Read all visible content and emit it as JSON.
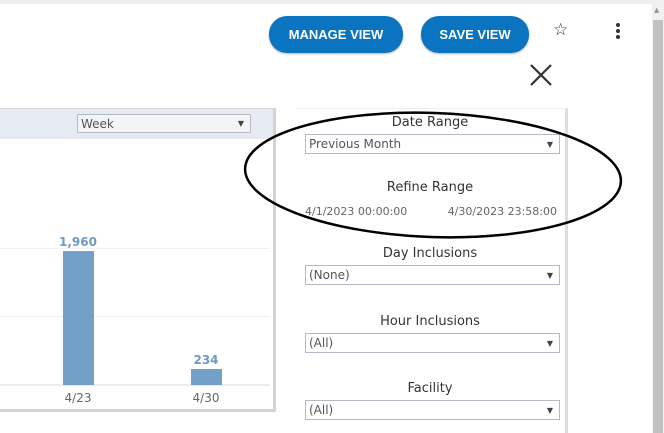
{
  "header": {
    "manage_view": "MANAGE VIEW",
    "save_view": "SAVE VIEW",
    "star_icon": "star-icon",
    "more_icon": "kebab-menu-icon",
    "close_icon": "close-icon"
  },
  "chart_panel": {
    "granularity": "Week"
  },
  "chart_data": {
    "type": "bar",
    "categories": [
      "4/23",
      "4/30"
    ],
    "values": [
      1960,
      234
    ],
    "data_labels": [
      "1,960",
      "234"
    ],
    "ylim": [
      0,
      3600
    ],
    "grid": true,
    "gridlines": [
      1000,
      2000
    ],
    "bar_color": "#73a0c6",
    "label_color": "#6f9ac4"
  },
  "filters": {
    "date_range": {
      "label": "Date Range",
      "value": "Previous Month"
    },
    "refine_range": {
      "label": "Refine Range",
      "start": "4/1/2023 00:00:00",
      "end": "4/30/2023 23:58:00"
    },
    "day_inclusions": {
      "label": "Day Inclusions",
      "value": "(None)"
    },
    "hour_inclusions": {
      "label": "Hour Inclusions",
      "value": "(All)"
    },
    "facility": {
      "label": "Facility",
      "value": "(All)"
    }
  },
  "annotation": {
    "shape": "hand-drawn ellipse around Date Range and Refine Range",
    "color": "#000000"
  }
}
